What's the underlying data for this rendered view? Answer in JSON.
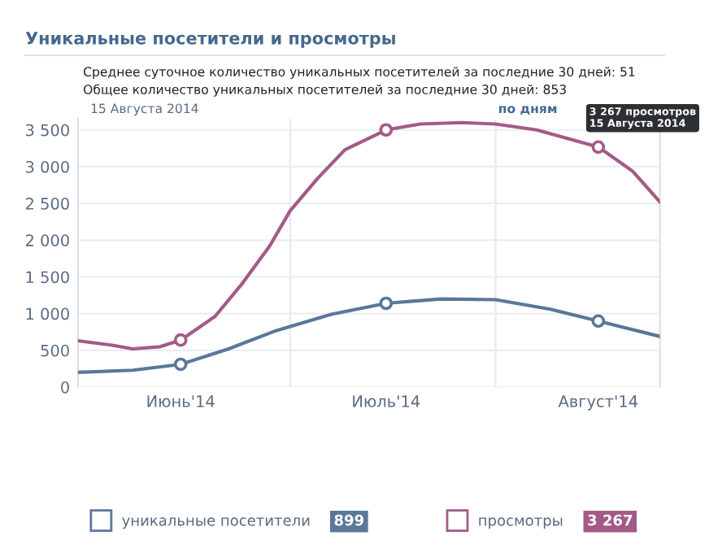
{
  "chart_data": {
    "type": "line",
    "title": "Уникальные посетители и просмотры",
    "series": [
      {
        "name": "уникальные посетители",
        "color": "#5b7799",
        "x": [
          "2014-05-17",
          "2014-05-25",
          "2014-06-01",
          "2014-06-08",
          "2014-06-15",
          "2014-06-23",
          "2014-07-01",
          "2014-07-09",
          "2014-07-17",
          "2014-07-25",
          "2014-08-01",
          "2014-08-10"
        ],
        "values": [
          200,
          230,
          310,
          520,
          770,
          990,
          1140,
          1200,
          1190,
          1060,
          899,
          690
        ]
      },
      {
        "name": "просмотры",
        "color": "#a45a86",
        "x": [
          "2014-05-17",
          "2014-05-22",
          "2014-05-25",
          "2014-05-29",
          "2014-06-01",
          "2014-06-06",
          "2014-06-10",
          "2014-06-14",
          "2014-06-17",
          "2014-06-21",
          "2014-06-25",
          "2014-07-01",
          "2014-07-06",
          "2014-07-12",
          "2014-07-17",
          "2014-07-23",
          "2014-08-01",
          "2014-08-06",
          "2014-08-10"
        ],
        "values": [
          630,
          570,
          520,
          550,
          640,
          960,
          1410,
          1920,
          2400,
          2840,
          3230,
          3500,
          3580,
          3600,
          3580,
          3500,
          3267,
          2940,
          2520
        ]
      },
      {
        "type": "scatter",
        "color": "#5b7799",
        "x": [
          "2014-06-01",
          "2014-07-01",
          "2014-08-01"
        ],
        "values": [
          310,
          1140,
          899
        ]
      },
      {
        "type": "scatter",
        "color": "#a45a86",
        "x": [
          "2014-06-01",
          "2014-07-01",
          "2014-08-01"
        ],
        "values": [
          640,
          3500,
          3267
        ]
      }
    ],
    "xlim": [
      "2014-05-17",
      "2014-08-10"
    ],
    "xticks": [
      {
        "value": "2014-06-01",
        "label": "Июнь'14"
      },
      {
        "value": "2014-07-01",
        "label": "Июль'14"
      },
      {
        "value": "2014-08-01",
        "label": "Август'14"
      }
    ],
    "ylim": [
      0,
      3650
    ],
    "yticks": [
      0,
      500,
      {
        "value": 1000,
        "label": "1 000"
      },
      {
        "value": 1500,
        "label": "1 500"
      },
      {
        "value": 2000,
        "label": "2 000"
      },
      {
        "value": 2500,
        "label": "2 500"
      },
      {
        "value": 3000,
        "label": "3 000"
      },
      {
        "value": 3500,
        "label": "3 500"
      }
    ],
    "ref_lines": [
      {
        "axis": "x",
        "value": "2014-06-17",
        "color": "#e6e9ee"
      },
      {
        "axis": "x",
        "value": "2014-07-17",
        "color": "#e6e9ee"
      }
    ],
    "grid": "y",
    "line_style": "solid",
    "legend": "bottom",
    "annotations": [
      "Среднее суточное количество уникальных посетителей за последние 30 дней: 51",
      "Общее количество уникальных посетителей за последние 30 дней: 853",
      "15 Августа 2014",
      "по дням",
      "899",
      "3 267",
      {
        "text": "3 267 просмотров\n15 Августа 2014",
        "x": "2014-08-01",
        "y": 3267
      }
    ]
  }
}
